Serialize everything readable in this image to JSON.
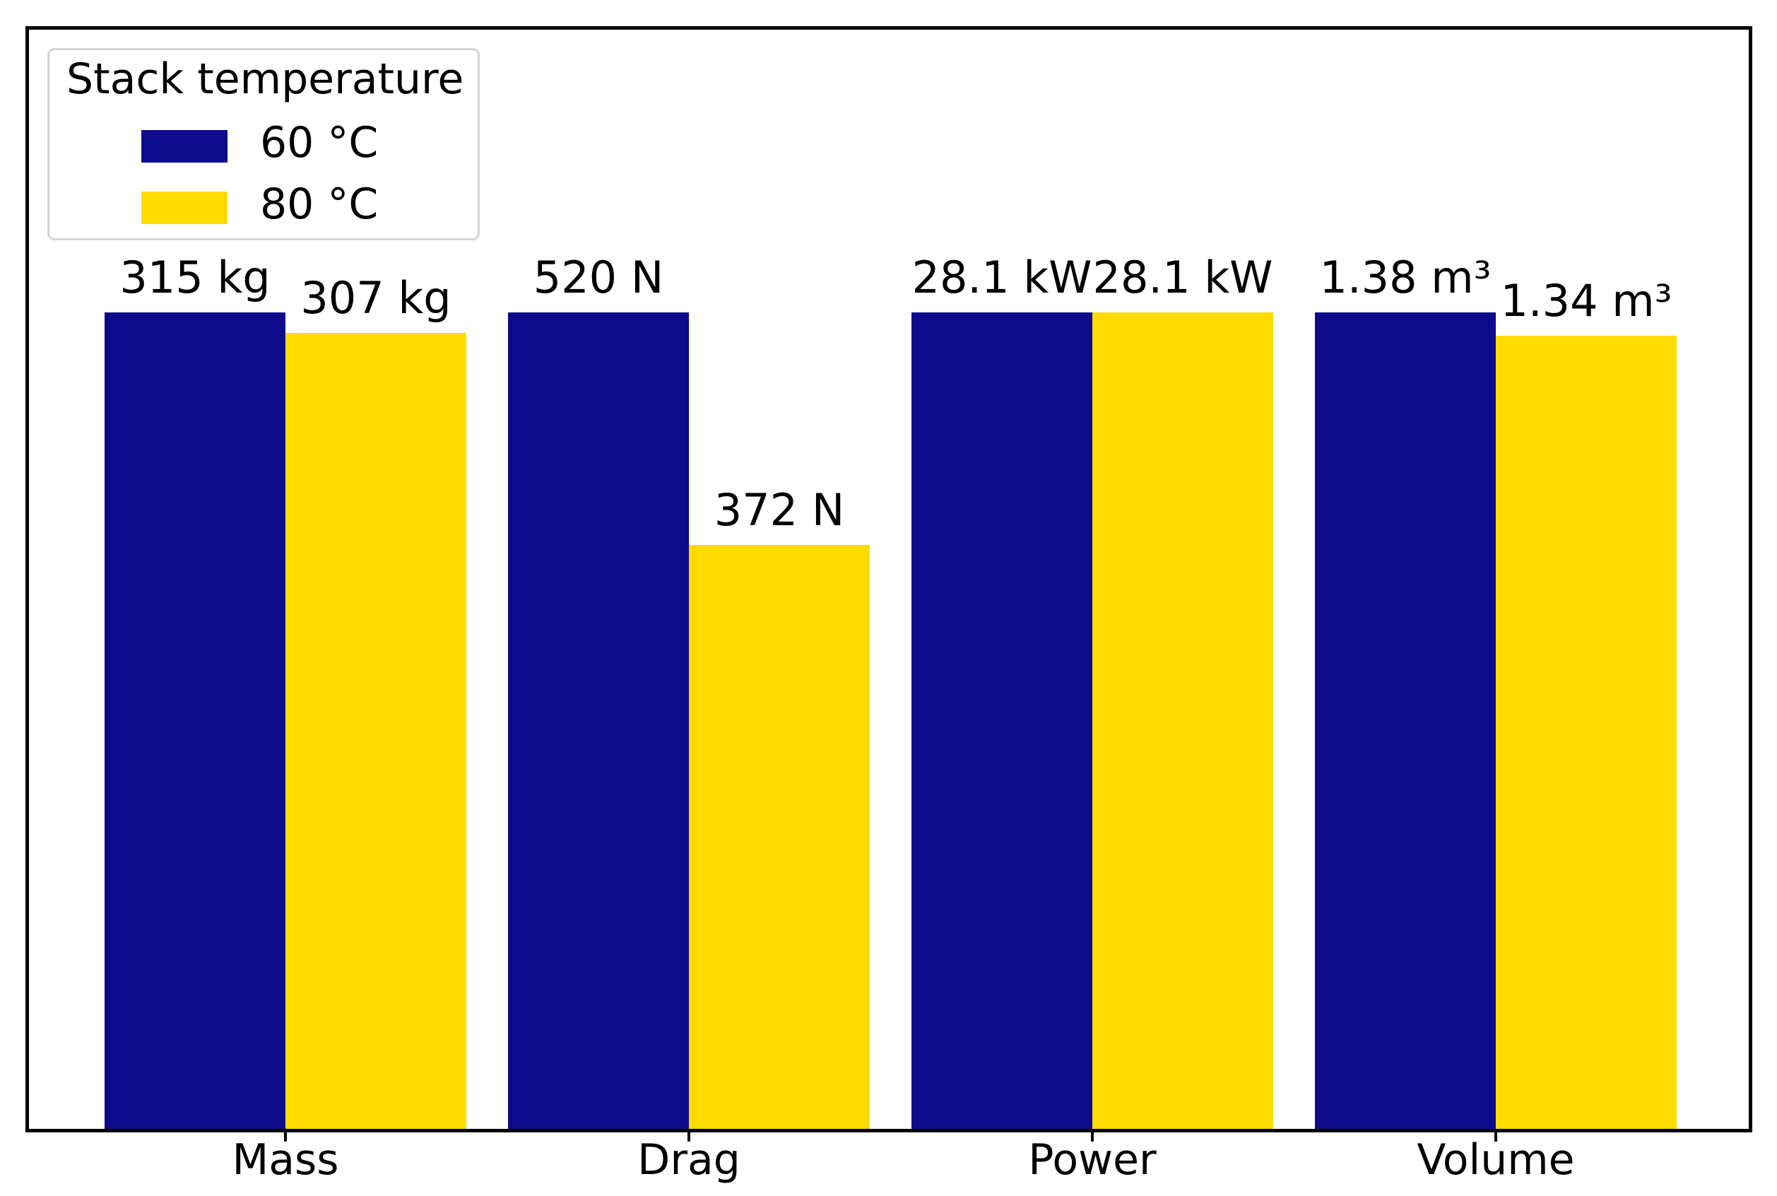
{
  "figure": {
    "background_color": "#ffffff",
    "frame_color": "#000000"
  },
  "legend": {
    "title": "Stack temperature",
    "position": "upper left",
    "entries": [
      {
        "label": "60 °C",
        "color": "#0d0a8c"
      },
      {
        "label": "80 °C",
        "color": "#ffdb00"
      }
    ]
  },
  "chart_data": {
    "type": "bar",
    "title": "",
    "xlabel": "",
    "ylabel": "",
    "categories": [
      "Mass",
      "Drag",
      "Power",
      "Volume"
    ],
    "units": [
      "kg",
      "N",
      "kW",
      "m³"
    ],
    "series": [
      {
        "name": "60 °C",
        "color": "#0d0a8c",
        "values": [
          315,
          520,
          28.1,
          1.38
        ],
        "labels": [
          "315 kg",
          "520 N",
          "28.1 kW",
          "1.38 m³"
        ]
      },
      {
        "name": "80 °C",
        "color": "#ffdb00",
        "values": [
          307,
          372,
          28.1,
          1.34
        ],
        "labels": [
          "307 kg",
          "372 N",
          "28.1 kW",
          "1.34 m³"
        ]
      }
    ],
    "normalization": "bar heights scaled per category to the category maximum",
    "bar_value_labels_shown": true,
    "y_axis_ticks_shown": false,
    "grid": false,
    "legend_position": "upper left"
  }
}
